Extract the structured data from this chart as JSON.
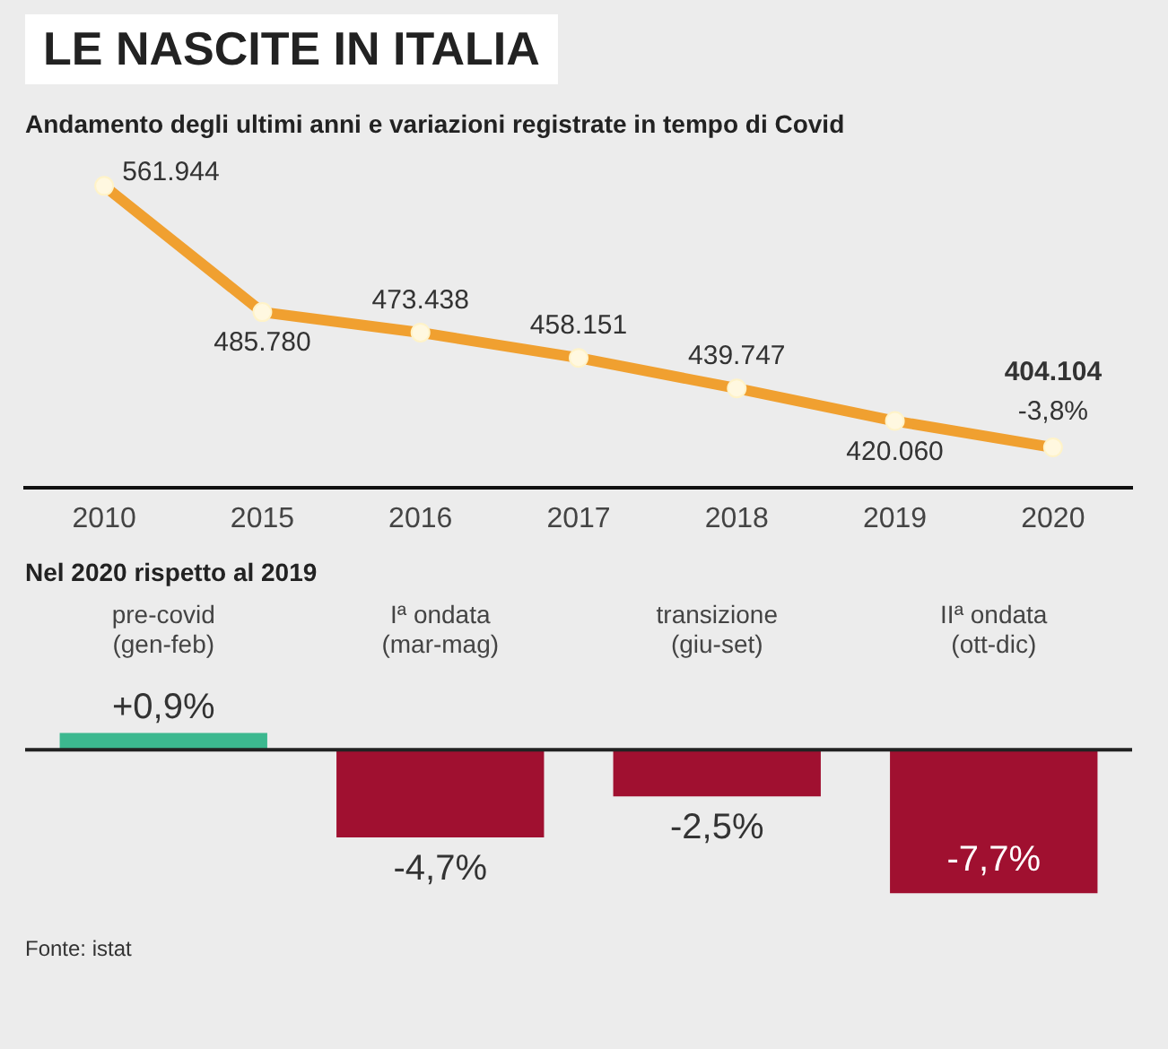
{
  "chart_data": [
    {
      "type": "line",
      "title": "LE NASCITE IN ITALIA",
      "subtitle": "Andamento degli ultimi anni e variazioni registrate in tempo di Covid",
      "categories": [
        "2010",
        "2015",
        "2016",
        "2017",
        "2018",
        "2019",
        "2020"
      ],
      "series": [
        {
          "color": "#f0a030",
          "values": [
            561944,
            485780,
            473438,
            458151,
            439747,
            420060,
            404104
          ],
          "value_labels": [
            "561.944",
            "485.780",
            "473.438",
            "458.151",
            "439.747",
            "420.060",
            "404.104"
          ]
        }
      ],
      "marker": "circle",
      "legend": false,
      "grid": false,
      "annotations": [
        {
          "text": "-3,8%",
          "x": "2020",
          "y": 404104
        }
      ]
    },
    {
      "type": "bar",
      "title": "Nel 2020 rispetto al 2019",
      "categories": [
        "pre-covid (gen-feb)",
        "Iª ondata (mar-mag)",
        "transizione (giu-set)",
        "IIª ondata (ott-dic)"
      ],
      "values": [
        0.9,
        -4.7,
        -2.5,
        -7.7
      ],
      "colors": [
        "#3cb88f",
        "#a01030",
        "#a01030",
        "#a01030"
      ],
      "value_labels": [
        "+0,9%",
        "-4,7%",
        "-2,5%",
        "-7,7%"
      ],
      "legend": false,
      "grid": false,
      "annotations": [
        "Fonte: istat"
      ]
    }
  ]
}
